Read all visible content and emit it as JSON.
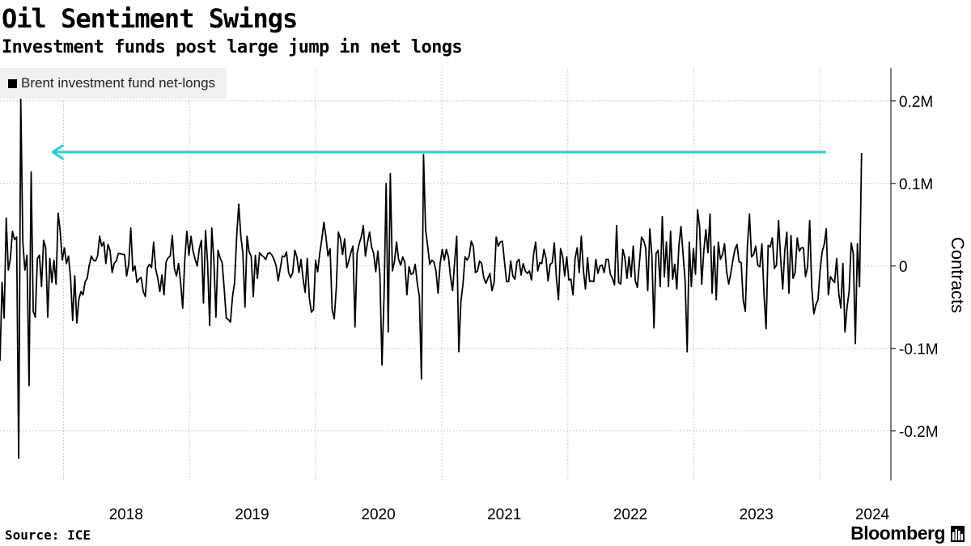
{
  "header": {
    "title": "Oil Sentiment Swings",
    "subtitle": "Investment funds post large jump in net longs"
  },
  "footer": {
    "source": "Source: ICE",
    "brand": "Bloomberg",
    "brand_icon": "bloomberg-bars-icon"
  },
  "colors": {
    "series": "#000000",
    "annotation_arrow": "#2ad0cc",
    "gridline": "#cccccc",
    "legend_bg": "#f0f0f0"
  },
  "chart_data": {
    "type": "line",
    "title": "Oil Sentiment Swings",
    "subtitle": "Investment funds post large jump in net longs",
    "ylabel": "Contracts",
    "ylim": [
      -0.26,
      0.24
    ],
    "yticks": [
      -0.2,
      -0.1,
      0,
      0.1,
      0.2
    ],
    "ytick_labels": [
      "-0.2M",
      "-0.1M",
      "0",
      "0.1M",
      "0.2M"
    ],
    "xlim": [
      "2017-07-01",
      "2024-06-01"
    ],
    "xtick_labels": [
      "2018",
      "2019",
      "2020",
      "2021",
      "2022",
      "2023",
      "2024"
    ],
    "grid": true,
    "legend_position": "top-left",
    "series": [
      {
        "name": "Brent investment fund net-longs",
        "color": "#000000",
        "values": [
          -0.115,
          -0.02,
          -0.063,
          0.058,
          -0.005,
          0.009,
          0.042,
          0.032,
          0.035,
          -0.233,
          0.202,
          0.028,
          -0.005,
          0.013,
          -0.145,
          0.114,
          -0.055,
          -0.062,
          0.009,
          0.013,
          -0.025,
          0.031,
          0.022,
          -0.062,
          0.009,
          -0.02,
          0.007,
          -0.022,
          0.064,
          0.042,
          0.007,
          0.022,
          0.003,
          0.012,
          -0.015,
          -0.066,
          -0.012,
          -0.069,
          -0.04,
          -0.031,
          -0.035,
          -0.019,
          -0.015,
          0.001,
          0.012,
          0.007,
          0.006,
          0.012,
          0.036,
          0.024,
          0.029,
          0.003,
          0.026,
          0.019,
          -0.008,
          0.003,
          0.006,
          0.015,
          0.015,
          0.014,
          0.014,
          -0.012,
          0.002,
          0.046,
          -0.006,
          0.0,
          -0.02,
          -0.016,
          -0.014,
          -0.031,
          -0.037,
          -0.002,
          0.002,
          -0.002,
          0.029,
          -0.004,
          -0.015,
          -0.031,
          -0.011,
          -0.035,
          0.005,
          0.01,
          0.012,
          0.037,
          -0.003,
          -0.012,
          0.003,
          -0.02,
          -0.051,
          0.008,
          0.042,
          0.013,
          0.036,
          0.018,
          0.008,
          0.0,
          0.021,
          0.031,
          -0.045,
          0.043,
          0.003,
          -0.072,
          0.046,
          0.008,
          -0.062,
          0.019,
          0.01,
          0.004,
          -0.028,
          -0.063,
          -0.065,
          -0.068,
          -0.037,
          -0.02,
          0.036,
          0.075,
          0.036,
          0.015,
          -0.05,
          0.036,
          0.017,
          0.012,
          -0.037,
          0.013,
          -0.015,
          0.016,
          0.013,
          0.011,
          0.008,
          0.015,
          0.016,
          0.013,
          0.008,
          0.0,
          -0.018,
          -0.003,
          0.012,
          0.011,
          0.017,
          -0.008,
          -0.014,
          -0.008,
          0.019,
          0.011,
          -0.008,
          0.008,
          -0.016,
          -0.032,
          0.009,
          -0.039,
          -0.056,
          -0.053,
          0.007,
          -0.007,
          0.015,
          0.032,
          0.053,
          0.035,
          0.012,
          0.021,
          -0.053,
          -0.064,
          -0.026,
          0.041,
          0.033,
          0.014,
          0.033,
          -0.002,
          0.006,
          0.016,
          0.024,
          -0.074,
          0.015,
          0.027,
          0.035,
          0.049,
          0.012,
          0.028,
          0.041,
          0.023,
          0.015,
          -0.007,
          0.018,
          -0.012,
          -0.12,
          -0.035,
          0.1,
          -0.08,
          0.112,
          -0.006,
          0.005,
          0.029,
          0.008,
          0.001,
          0.011,
          0.004,
          -0.035,
          -0.001,
          -0.01,
          -0.009,
          0.002,
          -0.021,
          -0.037,
          -0.137,
          0.135,
          0.044,
          0.024,
          0.002,
          0.007,
          0.005,
          -0.006,
          -0.033,
          0.003,
          0.02,
          0.007,
          0.02,
          0.011,
          -0.013,
          -0.03,
          0.005,
          0.036,
          -0.104,
          -0.043,
          -0.022,
          0.011,
          0.007,
          0.012,
          0.03,
          0.024,
          -0.008,
          -0.006,
          0.006,
          0.003,
          -0.014,
          -0.021,
          -0.015,
          -0.009,
          -0.03,
          -0.02,
          0.035,
          0.024,
          0.029,
          0.03,
          0.005,
          -0.019,
          -0.019,
          0.006,
          -0.012,
          -0.016,
          0.005,
          0.008,
          -0.011,
          0.003,
          -0.006,
          -0.009,
          -0.006,
          -0.017,
          0.014,
          0.029,
          -0.006,
          0.004,
          0.003,
          0.02,
          0.009,
          -0.018,
          0.002,
          0.004,
          0.028,
          -0.014,
          -0.041,
          0.021,
          0.012,
          -0.012,
          0.011,
          -0.017,
          -0.016,
          -0.035,
          0.009,
          0.022,
          -0.008,
          0.036,
          -0.005,
          -0.028,
          0.01,
          -0.019,
          -0.018,
          -0.019,
          0.008,
          -0.009,
          0.0,
          0.001,
          -0.008,
          0.008,
          0.008,
          -0.01,
          -0.015,
          -0.023,
          0.049,
          -0.02,
          -0.022,
          0.02,
          0.01,
          -0.015,
          0.011,
          -0.013,
          0.024,
          -0.018,
          -0.026,
          0.004,
          0.035,
          0.031,
          0.022,
          -0.03,
          0.045,
          0.012,
          -0.075,
          0.015,
          0.019,
          -0.025,
          0.06,
          -0.013,
          0.029,
          -0.025,
          0.042,
          -0.016,
          0.002,
          -0.028,
          0.024,
          0.048,
          0.015,
          -0.018,
          -0.104,
          0.029,
          -0.025,
          0.021,
          -0.01,
          0.068,
          0.047,
          -0.022,
          0.018,
          0.044,
          0.016,
          0.063,
          -0.033,
          0.024,
          -0.041,
          0.029,
          0.008,
          0.014,
          0.027,
          -0.007,
          -0.022,
          -0.009,
          0.007,
          0.02,
          0.026,
          0.005,
          0.004,
          -0.042,
          -0.055,
          0.024,
          0.063,
          0.011,
          0.014,
          0.024,
          0.001,
          -0.001,
          0.027,
          -0.034,
          -0.076,
          0.025,
          0.023,
          0.034,
          -0.003,
          0.001,
          0.055,
          0.01,
          -0.028,
          0.018,
          0.041,
          -0.033,
          0.037,
          -0.015,
          -0.008,
          0.034,
          0.018,
          0.022,
          0.022,
          -0.013,
          -0.001,
          0.055,
          -0.026,
          -0.058,
          -0.047,
          -0.041,
          -0.006,
          0.017,
          0.026,
          0.045,
          -0.035,
          -0.013,
          -0.017,
          -0.02,
          0.009,
          -0.033,
          -0.051,
          0.003,
          -0.08,
          -0.05,
          -0.031,
          0.028,
          0.015,
          -0.094,
          0.027,
          -0.025,
          0.137
        ]
      }
    ],
    "annotation": {
      "type": "arrow",
      "direction": "left",
      "y": 0.138,
      "from_x": "2024-05-01",
      "to_x": "2017-12-01",
      "color": "#2ad0cc"
    }
  }
}
